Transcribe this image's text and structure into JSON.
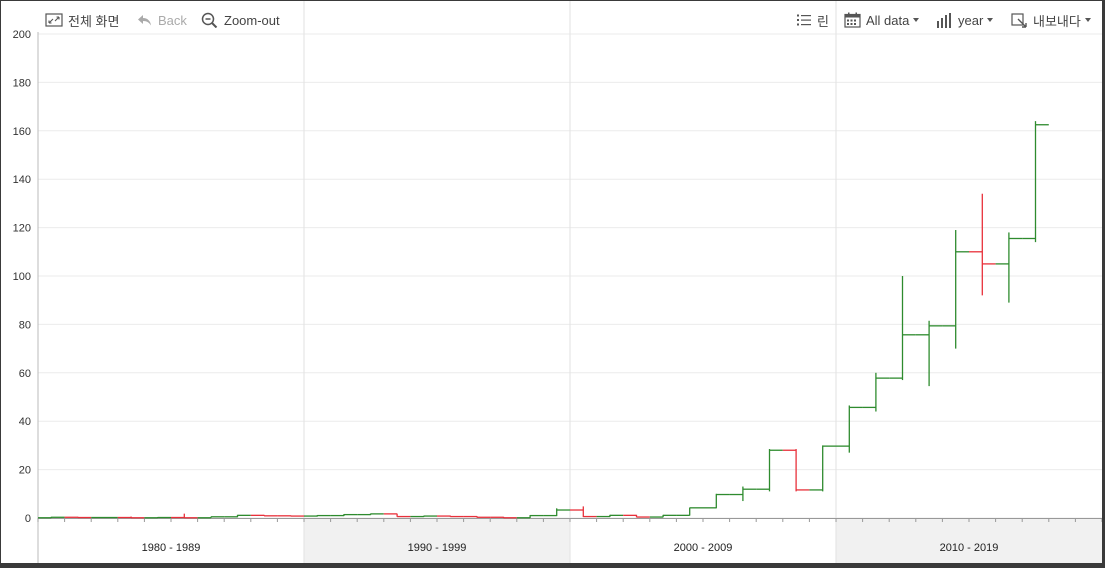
{
  "toolbar": {
    "fullscreen_label": "전체 화면",
    "back_label": "Back",
    "zoomout_label": "Zoom-out",
    "legend_label": "린",
    "range_label": "All data",
    "period_label": "year",
    "export_label": "내보내다"
  },
  "colors": {
    "up": "#2e8b2e",
    "down": "#e8303a",
    "grid": "#ebebeb",
    "band": "#f1f1f1"
  },
  "chart_data": {
    "type": "ohlc",
    "ylim": [
      0,
      200
    ],
    "yticks": [
      0,
      20,
      40,
      60,
      80,
      100,
      120,
      140,
      160,
      180,
      200
    ],
    "xlim": [
      1980,
      2020
    ],
    "decades": [
      {
        "label": "1980 - 1989",
        "start": 1980,
        "end": 1990
      },
      {
        "label": "1990 - 1999",
        "start": 1990,
        "end": 2000
      },
      {
        "label": "2000 - 2009",
        "start": 2000,
        "end": 2010
      },
      {
        "label": "2010 - 2019",
        "start": 2010,
        "end": 2020
      }
    ],
    "bars": [
      {
        "year": 1980,
        "open": 0.1,
        "high": 0.5,
        "low": 0.0,
        "close": 0.3
      },
      {
        "year": 1981,
        "open": 0.3,
        "high": 0.5,
        "low": 0.1,
        "close": 0.2
      },
      {
        "year": 1982,
        "open": 0.2,
        "high": 0.4,
        "low": 0.0,
        "close": 0.2
      },
      {
        "year": 1983,
        "open": 0.2,
        "high": 0.6,
        "low": 0.0,
        "close": 0.1
      },
      {
        "year": 1984,
        "open": 0.1,
        "high": 0.4,
        "low": 0.0,
        "close": 0.2
      },
      {
        "year": 1985,
        "open": 0.2,
        "high": 1.8,
        "low": 0.0,
        "close": 0.1
      },
      {
        "year": 1986,
        "open": 0.1,
        "high": 0.5,
        "low": 0.0,
        "close": 0.5
      },
      {
        "year": 1987,
        "open": 0.5,
        "high": 1.3,
        "low": 0.3,
        "close": 1.1
      },
      {
        "year": 1988,
        "open": 1.1,
        "high": 1.3,
        "low": 0.9,
        "close": 0.9
      },
      {
        "year": 1989,
        "open": 0.9,
        "high": 1.1,
        "low": 0.7,
        "close": 0.8
      },
      {
        "year": 1990,
        "open": 0.8,
        "high": 1.2,
        "low": 0.6,
        "close": 1.0
      },
      {
        "year": 1991,
        "open": 1.0,
        "high": 1.6,
        "low": 0.8,
        "close": 1.4
      },
      {
        "year": 1992,
        "open": 1.4,
        "high": 1.8,
        "low": 1.2,
        "close": 1.7
      },
      {
        "year": 1993,
        "open": 1.7,
        "high": 1.8,
        "low": 0.5,
        "close": 0.6
      },
      {
        "year": 1994,
        "open": 0.6,
        "high": 0.9,
        "low": 0.4,
        "close": 0.8
      },
      {
        "year": 1995,
        "open": 0.8,
        "high": 1.0,
        "low": 0.5,
        "close": 0.6
      },
      {
        "year": 1996,
        "open": 0.6,
        "high": 0.8,
        "low": 0.2,
        "close": 0.3
      },
      {
        "year": 1997,
        "open": 0.3,
        "high": 0.5,
        "low": 0.0,
        "close": 0.1
      },
      {
        "year": 1998,
        "open": 0.1,
        "high": 1.2,
        "low": 0.0,
        "close": 1.0
      },
      {
        "year": 1999,
        "open": 1.0,
        "high": 4.0,
        "low": 0.8,
        "close": 3.3
      },
      {
        "year": 2000,
        "open": 3.3,
        "high": 4.8,
        "low": 0.4,
        "close": 0.6
      },
      {
        "year": 2001,
        "open": 0.6,
        "high": 1.3,
        "low": 0.4,
        "close": 1.1
      },
      {
        "year": 2002,
        "open": 1.1,
        "high": 1.3,
        "low": 0.3,
        "close": 0.4
      },
      {
        "year": 2003,
        "open": 0.4,
        "high": 1.3,
        "low": 0.3,
        "close": 1.1
      },
      {
        "year": 2004,
        "open": 1.1,
        "high": 4.3,
        "low": 1.0,
        "close": 4.2
      },
      {
        "year": 2005,
        "open": 4.2,
        "high": 10.0,
        "low": 4.0,
        "close": 9.7
      },
      {
        "year": 2006,
        "open": 9.7,
        "high": 13.0,
        "low": 7.0,
        "close": 11.9
      },
      {
        "year": 2007,
        "open": 11.9,
        "high": 28.5,
        "low": 11.0,
        "close": 28.0
      },
      {
        "year": 2008,
        "open": 28.0,
        "high": 28.5,
        "low": 11.0,
        "close": 11.6
      },
      {
        "year": 2009,
        "open": 11.6,
        "high": 30.0,
        "low": 11.0,
        "close": 29.7
      },
      {
        "year": 2010,
        "open": 29.7,
        "high": 46.5,
        "low": 27.0,
        "close": 45.7
      },
      {
        "year": 2011,
        "open": 45.7,
        "high": 60.0,
        "low": 44.0,
        "close": 57.8
      },
      {
        "year": 2012,
        "open": 57.8,
        "high": 100.0,
        "low": 57.0,
        "close": 75.7
      },
      {
        "year": 2013,
        "open": 75.7,
        "high": 81.5,
        "low": 54.5,
        "close": 79.4
      },
      {
        "year": 2014,
        "open": 79.4,
        "high": 119.0,
        "low": 70.0,
        "close": 110.0
      },
      {
        "year": 2015,
        "open": 110.0,
        "high": 134.0,
        "low": 92.0,
        "close": 105.0
      },
      {
        "year": 2016,
        "open": 105.0,
        "high": 118.0,
        "low": 89.0,
        "close": 115.5
      },
      {
        "year": 2017,
        "open": 115.5,
        "high": 164.0,
        "low": 114.0,
        "close": 162.5
      }
    ]
  }
}
